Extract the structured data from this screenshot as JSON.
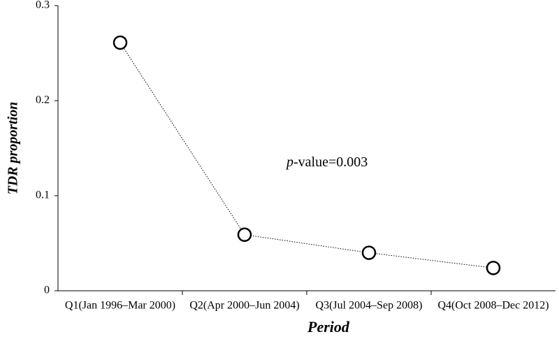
{
  "chart_data": {
    "type": "line",
    "x_label": "Period",
    "y_label": "TDR proportion",
    "annotation": {
      "italic": "p",
      "text": "-value=0.003"
    },
    "categories": [
      "Q1(Jan 1996–Mar 2000)",
      "Q2(Apr 2000–Jun 2004)",
      "Q3(Jul 2004–Sep 2008)",
      "Q4(Oct 2008–Dec 2012)"
    ],
    "values": [
      0.261,
      0.059,
      0.04,
      0.024
    ],
    "color": "#000000",
    "ylim": [
      0,
      0.3
    ],
    "yticks": [
      0,
      0.1,
      0.2,
      0.3
    ],
    "grid": false
  }
}
